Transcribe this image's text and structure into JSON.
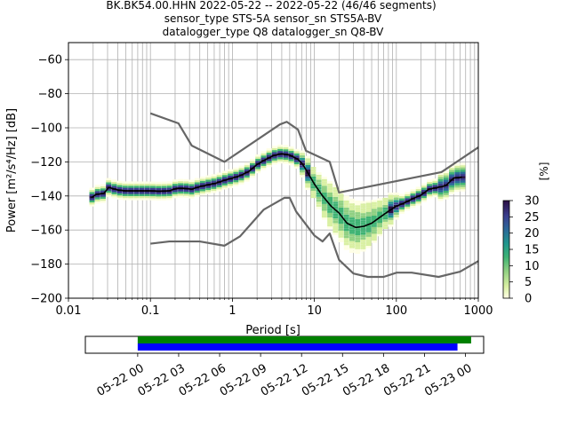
{
  "title_lines": [
    "BK.BK54.00.HHN   2022-05-22 -- 2022-05-22  (46/46 segments)",
    "sensor_type STS-5A sensor_sn STS5A-BV",
    "datalogger_type Q8 datalogger_sn Q8-BV"
  ],
  "chart_data": [
    {
      "type": "heatmap",
      "title": "BK.BK54.00.HHN   2022-05-22 -- 2022-05-22  (46/46 segments)",
      "xlabel": "Period [s]",
      "ylabel": "Power [m²/s⁴/Hz] [dB]",
      "xscale": "log",
      "xlim": [
        0.01,
        1000
      ],
      "ylim": [
        -200,
        -50
      ],
      "xticks": [
        0.01,
        0.1,
        1,
        10,
        100,
        1000
      ],
      "xtick_labels": [
        "0.01",
        "0.1",
        "1",
        "10",
        "100",
        "1000"
      ],
      "yticks": [
        -200,
        -180,
        -160,
        -140,
        -120,
        -100,
        -80,
        -60
      ],
      "ytick_labels": [
        "−200",
        "−180",
        "−160",
        "−140",
        "−120",
        "−100",
        "−80",
        "−60"
      ],
      "grid": true,
      "colorbar": {
        "label": "[%]",
        "range": [
          0,
          30
        ],
        "ticks": [
          0,
          5,
          10,
          15,
          20,
          25,
          30
        ],
        "tick_labels": [
          "0",
          "5",
          "10",
          "15",
          "20",
          "25",
          "30"
        ]
      },
      "series": [
        {
          "name": "mean",
          "color": "#000000",
          "x": [
            0.019,
            0.022,
            0.027,
            0.031,
            0.04,
            0.05,
            0.07,
            0.1,
            0.13,
            0.17,
            0.21,
            0.26,
            0.32,
            0.4,
            0.5,
            0.63,
            0.8,
            1.0,
            1.26,
            1.6,
            2.0,
            2.5,
            3.2,
            4.0,
            5.0,
            6.3,
            7.1,
            8.0,
            10,
            12.6,
            16,
            20,
            25,
            32,
            40,
            50,
            63,
            80,
            100,
            126,
            160,
            200,
            250,
            320,
            400,
            500,
            630
          ],
          "y": [
            -141,
            -139,
            -138.5,
            -135,
            -136.5,
            -137,
            -137,
            -137,
            -137.2,
            -137,
            -135.5,
            -135.5,
            -136,
            -134.5,
            -133.5,
            -132.5,
            -130.8,
            -129.5,
            -128,
            -125.5,
            -121.5,
            -118.8,
            -116.2,
            -115.2,
            -116,
            -118.5,
            -121,
            -125,
            -133,
            -140,
            -146,
            -150,
            -156,
            -158.5,
            -157.8,
            -156,
            -152.5,
            -149,
            -146,
            -144,
            -141.5,
            -139.5,
            -136,
            -135,
            -134,
            -129.5,
            -129
          ]
        },
        {
          "name": "noise model high",
          "color": "#666666",
          "x": [
            0.1,
            0.22,
            0.32,
            0.8,
            3.8,
            4.6,
            6.3,
            7.9,
            15.4,
            20,
            354.8,
            1000
          ],
          "y": [
            -91.5,
            -97.4,
            -110.5,
            -120,
            -98,
            -96.5,
            -101,
            -113.5,
            -120,
            -138,
            -126,
            -111.5
          ]
        },
        {
          "name": "noise model low",
          "color": "#666666",
          "x": [
            0.1,
            0.17,
            0.4,
            0.8,
            1.24,
            2.4,
            4.3,
            5.0,
            6.0,
            10,
            12.6,
            15.4,
            20,
            30,
            45,
            70,
            101,
            154,
            328,
            600,
            1000
          ],
          "y": [
            -168,
            -166.7,
            -166.7,
            -169.2,
            -163.7,
            -148.1,
            -141.1,
            -141.1,
            -149.2,
            -163.2,
            -166.7,
            -162,
            -177.5,
            -185.5,
            -187.5,
            -187.5,
            -185,
            -185,
            -187.5,
            -184.4,
            -178.2
          ]
        }
      ]
    },
    {
      "type": "bar",
      "title": "",
      "xlabel": "",
      "ylabel": "",
      "xlim": [
        "05-21 20:10",
        "05-23 01:20"
      ],
      "xticks": [
        "05-22 00",
        "05-22 03",
        "05-22 06",
        "05-22 09",
        "05-22 12",
        "05-22 15",
        "05-22 18",
        "05-22 21",
        "05-23 00"
      ],
      "series": [
        {
          "name": "",
          "color": "#008000",
          "start": "05-22 00:00",
          "end": "05-23 00:25"
        },
        {
          "name": "",
          "color": "#0000ff",
          "start": "05-22 00:00",
          "end": "05-22 23:25"
        }
      ]
    }
  ]
}
